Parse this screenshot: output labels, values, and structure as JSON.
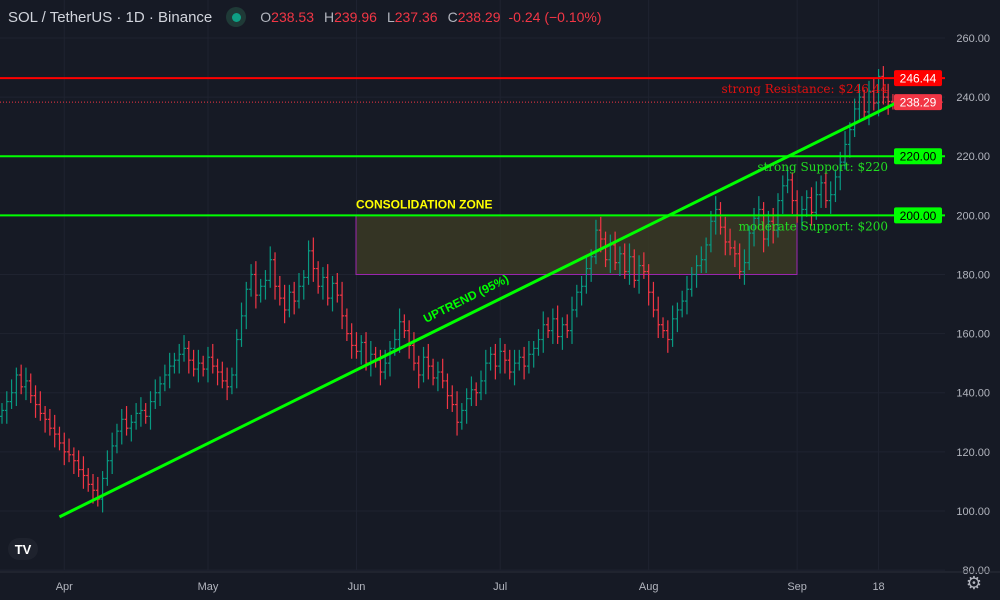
{
  "header": {
    "symbol": "SOL / TetherUS · 1D · Binance",
    "open_label": "O",
    "open": "238.53",
    "high_label": "H",
    "high": "239.96",
    "low_label": "L",
    "low": "237.36",
    "close_label": "C",
    "close": "238.29",
    "change": "-0.24 (−0.10%)"
  },
  "logo": "TV",
  "icons": {
    "settings": "gear-icon",
    "market_status": "dot-icon"
  },
  "colors": {
    "up": "#089981",
    "down": "#f23645",
    "support": "#00ff00",
    "resistance": "#ff0000",
    "zone_fill": "#3a3a24",
    "zone_border": "#9c27b0",
    "background": "#161a25"
  },
  "chart_data": {
    "type": "ohlc",
    "ylim": [
      75,
      268
    ],
    "yticks": [
      "80.00",
      "100.00",
      "120.00",
      "140.00",
      "160.00",
      "180.00",
      "200.00",
      "220.00",
      "240.00",
      "260.00"
    ],
    "xticks": [
      "Apr",
      "May",
      "Jun",
      "Jul",
      "Aug",
      "Sep",
      "18"
    ],
    "grid": true,
    "last_bar": {
      "open": 238.53,
      "high": 239.96,
      "low": 237.36,
      "close": 238.29
    },
    "close": [
      134,
      137,
      140,
      146,
      142,
      144,
      139,
      136,
      133,
      131,
      128,
      126,
      123,
      120,
      119,
      117,
      114,
      112,
      109,
      107,
      104,
      111,
      117,
      122,
      127,
      131,
      128,
      130,
      133,
      134,
      132,
      137,
      140,
      143,
      146,
      149,
      151,
      153,
      155,
      151,
      148,
      150,
      148,
      152,
      149,
      147,
      144,
      142,
      146,
      158,
      166,
      175,
      180,
      173,
      176,
      178,
      185,
      176,
      172,
      168,
      174,
      171,
      176,
      179,
      188,
      182,
      176,
      179,
      172,
      177,
      173,
      166,
      160,
      156,
      154,
      157,
      150,
      153,
      151,
      147,
      150,
      155,
      158,
      164,
      161,
      156,
      150,
      146,
      152,
      149,
      145,
      147,
      144,
      139,
      136,
      130,
      134,
      138,
      141,
      140,
      144,
      150,
      153,
      149,
      154,
      151,
      147,
      150,
      152,
      149,
      153,
      155,
      158,
      163,
      161,
      165,
      159,
      163,
      161,
      168,
      174,
      176,
      182,
      186,
      195,
      192,
      185,
      190,
      184,
      187,
      181,
      186,
      178,
      183,
      181,
      174,
      168,
      163,
      161,
      158,
      165,
      168,
      171,
      175,
      180,
      183,
      185,
      190,
      198,
      202,
      196,
      191,
      189,
      187,
      181,
      184,
      194,
      199,
      202,
      192,
      198,
      195,
      205,
      210,
      212,
      205,
      200,
      202,
      206,
      201,
      207,
      211,
      205,
      207,
      213,
      218,
      224,
      229,
      236,
      240,
      235,
      242,
      238,
      247,
      240,
      238.53,
      238.29
    ],
    "levels": [
      {
        "price": 246.44,
        "axis_label": "246.44",
        "text": "strong Resistance: $246.44",
        "kind": "resistance"
      },
      {
        "price": 220,
        "axis_label": "220.00",
        "text": "strong Support: $220",
        "kind": "support"
      },
      {
        "price": 200,
        "axis_label": "200.00",
        "text": "moderate Support: $200",
        "kind": "support"
      }
    ],
    "last_price_label": "238.29",
    "zone": {
      "label": "CONSOLIDATION ZONE",
      "top": 200,
      "bottom": 180
    },
    "trendline": {
      "label": "UPTREND (95%)",
      "start_price": 98,
      "end_price": 238
    }
  }
}
